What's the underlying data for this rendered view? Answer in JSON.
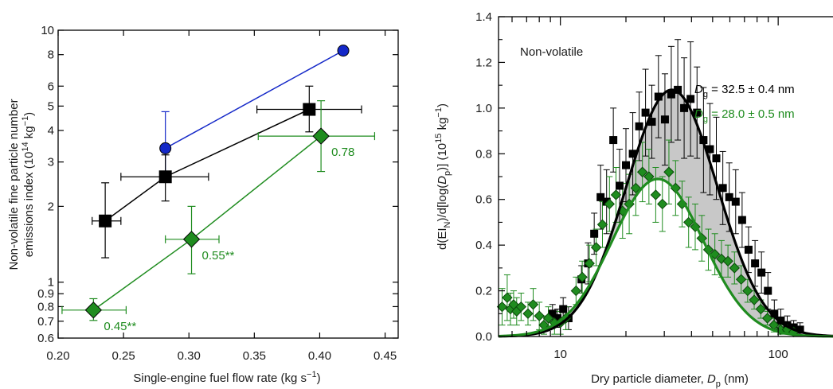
{
  "chart_data": [
    {
      "type": "scatter",
      "xlabel": "Single-engine fuel flow rate (kg s",
      "xlabel_sup": "−1",
      "xlabel_end": ")",
      "ylabel_line1": "Non-volatile fine particle number",
      "ylabel_line2_a": "emissions index (10",
      "ylabel_line2_sup1": "14",
      "ylabel_line2_b": " kg",
      "ylabel_line2_sup2": "−1",
      "ylabel_line2_c": ")",
      "xlim": [
        0.2,
        0.46
      ],
      "ylim": [
        0.6,
        10
      ],
      "yscale": "log",
      "x_ticks": [
        0.2,
        0.25,
        0.3,
        0.35,
        0.4,
        0.45
      ],
      "x_tick_labels": [
        "0.20",
        "0.25",
        "0.30",
        "0.35",
        "0.40",
        "0.45"
      ],
      "y_ticks": [
        0.6,
        0.7,
        0.8,
        0.9,
        1,
        2,
        3,
        4,
        5,
        6,
        8,
        10
      ],
      "y_tick_labels": [
        "0.6",
        "0.7",
        "0.8",
        "0.9",
        "1",
        "2",
        "3",
        "4",
        "5",
        "6",
        "8",
        "10"
      ],
      "series": [
        {
          "color": "#1428c8",
          "marker": "circle",
          "points": [
            {
              "x": 0.282,
              "y": 3.4,
              "ylo": 2.55,
              "yhi": 4.75
            },
            {
              "x": 0.418,
              "y": 8.3
            }
          ]
        },
        {
          "color": "#000000",
          "marker": "square",
          "points": [
            {
              "x": 0.236,
              "y": 1.75,
              "xlo": 0.226,
              "xhi": 0.248,
              "ylo": 1.25,
              "yhi": 2.48
            },
            {
              "x": 0.282,
              "y": 2.62,
              "xlo": 0.248,
              "xhi": 0.315,
              "ylo": 2.1,
              "yhi": 3.2
            },
            {
              "x": 0.392,
              "y": 4.85,
              "xlo": 0.352,
              "xhi": 0.432,
              "ylo": 3.95,
              "yhi": 6.0
            }
          ]
        },
        {
          "color": "#1f8c1f",
          "marker": "diamond",
          "points": [
            {
              "x": 0.227,
              "y": 0.775,
              "xlo": 0.203,
              "xhi": 0.252,
              "ylo": 0.705,
              "yhi": 0.86,
              "label": "0.45**"
            },
            {
              "x": 0.302,
              "y": 1.48,
              "xlo": 0.282,
              "xhi": 0.323,
              "ylo": 1.08,
              "yhi": 2.0,
              "label": "0.55**"
            },
            {
              "x": 0.401,
              "y": 3.8,
              "xlo": 0.353,
              "xhi": 0.442,
              "ylo": 2.75,
              "yhi": 5.25,
              "label": "0.78"
            }
          ]
        }
      ],
      "grid": false
    },
    {
      "type": "scatter",
      "annotation": "Non-volatile",
      "xlabel": "Dry particle diameter, ",
      "xlabel_var": "D",
      "xlabel_var_sub": "p",
      "xlabel_end": " (nm)",
      "ylabel": "d(EI",
      "ylabel_sub1": "N",
      "ylabel_mid": ")/d[log(",
      "ylabel_var": "D",
      "ylabel_sub2": "p",
      "ylabel_end": ")] (10",
      "ylabel_sup": "15",
      "ylabel_tail": " kg",
      "ylabel_sup2": "−1",
      "ylabel_close": ")",
      "xscale": "log",
      "xlim": [
        5.2,
        250
      ],
      "ylim": [
        0,
        1.4
      ],
      "x_tick_labels": [
        "10",
        "100"
      ],
      "y_ticks": [
        0,
        0.2,
        0.4,
        0.6,
        0.8,
        1.0,
        1.2,
        1.4
      ],
      "y_tick_labels": [
        "0.0",
        "0.2",
        "0.4",
        "0.6",
        "0.8",
        "1.0",
        "1.2",
        "1.4"
      ],
      "fits": [
        {
          "color": "#000000",
          "amplitude": 1.08,
          "dg": 32.5,
          "sigma": 1.62,
          "label_var": "D",
          "label_sub": "g",
          "label_text": " = 32.5 ± 0.4 nm"
        },
        {
          "color": "#1f8c1f",
          "amplitude": 0.69,
          "dg": 28.0,
          "sigma": 1.62,
          "label_var": "D",
          "label_sub": "g",
          "label_text": " = 28.0 ± 0.5 nm"
        }
      ],
      "series": [
        {
          "color": "#000000",
          "marker": "square",
          "points": [
            {
              "x": 9.2,
              "y": 0.1,
              "err": 0.04
            },
            {
              "x": 9.7,
              "y": 0.08,
              "err": 0.04
            },
            {
              "x": 10.3,
              "y": 0.12,
              "err": 0.05
            },
            {
              "x": 10.9,
              "y": 0.08,
              "err": 0.05
            },
            {
              "x": 12.5,
              "y": 0.25,
              "err": 0.06
            },
            {
              "x": 13.4,
              "y": 0.32,
              "err": 0.09
            },
            {
              "x": 14.3,
              "y": 0.45,
              "err": 0.09
            },
            {
              "x": 15.3,
              "y": 0.61,
              "err": 0.14
            },
            {
              "x": 16.3,
              "y": 0.59,
              "err": 0.14
            },
            {
              "x": 17.5,
              "y": 0.86,
              "err": 0.14
            },
            {
              "x": 18.7,
              "y": 0.66,
              "err": 0.16
            },
            {
              "x": 20.0,
              "y": 0.75,
              "err": 0.16
            },
            {
              "x": 21.5,
              "y": 0.8,
              "err": 0.18
            },
            {
              "x": 23.0,
              "y": 0.92,
              "err": 0.15
            },
            {
              "x": 24.6,
              "y": 0.98,
              "err": 0.19
            },
            {
              "x": 26.3,
              "y": 0.94,
              "err": 0.16
            },
            {
              "x": 28.2,
              "y": 1.05,
              "err": 0.18
            },
            {
              "x": 30.2,
              "y": 0.95,
              "err": 0.2
            },
            {
              "x": 32.3,
              "y": 1.06,
              "err": 0.21
            },
            {
              "x": 34.6,
              "y": 1.08,
              "err": 0.22
            },
            {
              "x": 37.0,
              "y": 1.0,
              "err": 0.22
            },
            {
              "x": 39.6,
              "y": 1.04,
              "err": 0.25
            },
            {
              "x": 42.4,
              "y": 0.98,
              "err": 0.2
            },
            {
              "x": 45.4,
              "y": 0.86,
              "err": 0.23
            },
            {
              "x": 48.6,
              "y": 0.82,
              "err": 0.2
            },
            {
              "x": 52.0,
              "y": 0.78,
              "err": 0.18
            },
            {
              "x": 55.7,
              "y": 0.65,
              "err": 0.16
            },
            {
              "x": 59.6,
              "y": 0.61,
              "err": 0.15
            },
            {
              "x": 63.8,
              "y": 0.59,
              "err": 0.14
            },
            {
              "x": 68.3,
              "y": 0.51,
              "err": 0.12
            },
            {
              "x": 73.1,
              "y": 0.38,
              "err": 0.1
            },
            {
              "x": 78.3,
              "y": 0.32,
              "err": 0.1
            },
            {
              "x": 83.8,
              "y": 0.28,
              "err": 0.09
            },
            {
              "x": 89.7,
              "y": 0.2,
              "err": 0.08
            },
            {
              "x": 96.0,
              "y": 0.1,
              "err": 0.06
            },
            {
              "x": 102.8,
              "y": 0.07,
              "err": 0.05
            },
            {
              "x": 110.0,
              "y": 0.05,
              "err": 0.04
            },
            {
              "x": 117.8,
              "y": 0.04,
              "err": 0.03
            },
            {
              "x": 126.0,
              "y": 0.03,
              "err": 0.03
            }
          ]
        },
        {
          "color": "#1f8c1f",
          "marker": "diamond",
          "points": [
            {
              "x": 5.4,
              "y": 0.13,
              "err": 0.08
            },
            {
              "x": 5.7,
              "y": 0.17,
              "err": 0.1
            },
            {
              "x": 5.9,
              "y": 0.12,
              "err": 0.07
            },
            {
              "x": 6.1,
              "y": 0.14,
              "err": 0.06
            },
            {
              "x": 6.3,
              "y": 0.11,
              "err": 0.06
            },
            {
              "x": 6.6,
              "y": 0.13,
              "err": 0.06
            },
            {
              "x": 7.1,
              "y": 0.1,
              "err": 0.05
            },
            {
              "x": 7.5,
              "y": 0.14,
              "err": 0.07
            },
            {
              "x": 8.0,
              "y": 0.09,
              "err": 0.06
            },
            {
              "x": 8.4,
              "y": 0.05,
              "err": 0.04
            },
            {
              "x": 8.8,
              "y": 0.08,
              "err": 0.05
            },
            {
              "x": 9.4,
              "y": 0.06,
              "err": 0.05
            },
            {
              "x": 10.0,
              "y": 0.06,
              "err": 0.05
            },
            {
              "x": 10.6,
              "y": 0.08,
              "err": 0.05
            },
            {
              "x": 11.8,
              "y": 0.2,
              "err": 0.06
            },
            {
              "x": 12.6,
              "y": 0.26,
              "err": 0.07
            },
            {
              "x": 13.6,
              "y": 0.32,
              "err": 0.08
            },
            {
              "x": 14.6,
              "y": 0.39,
              "err": 0.08
            },
            {
              "x": 15.6,
              "y": 0.49,
              "err": 0.1
            },
            {
              "x": 16.8,
              "y": 0.58,
              "err": 0.12
            },
            {
              "x": 18.0,
              "y": 0.62,
              "err": 0.12
            },
            {
              "x": 19.3,
              "y": 0.55,
              "err": 0.12
            },
            {
              "x": 20.7,
              "y": 0.58,
              "err": 0.13
            },
            {
              "x": 22.2,
              "y": 0.65,
              "err": 0.12
            },
            {
              "x": 23.8,
              "y": 0.72,
              "err": 0.13
            },
            {
              "x": 25.5,
              "y": 0.7,
              "err": 0.12
            },
            {
              "x": 27.4,
              "y": 0.62,
              "err": 0.12
            },
            {
              "x": 29.4,
              "y": 0.58,
              "err": 0.12
            },
            {
              "x": 31.5,
              "y": 0.72,
              "err": 0.14
            },
            {
              "x": 33.8,
              "y": 0.65,
              "err": 0.12
            },
            {
              "x": 36.2,
              "y": 0.58,
              "err": 0.1
            },
            {
              "x": 38.8,
              "y": 0.5,
              "err": 0.11
            },
            {
              "x": 41.6,
              "y": 0.48,
              "err": 0.1
            },
            {
              "x": 44.6,
              "y": 0.43,
              "err": 0.1
            },
            {
              "x": 47.8,
              "y": 0.38,
              "err": 0.09
            },
            {
              "x": 51.2,
              "y": 0.36,
              "err": 0.09
            },
            {
              "x": 54.9,
              "y": 0.34,
              "err": 0.08
            },
            {
              "x": 58.8,
              "y": 0.33,
              "err": 0.07
            },
            {
              "x": 63.0,
              "y": 0.3,
              "err": 0.07
            },
            {
              "x": 67.6,
              "y": 0.25,
              "err": 0.06
            },
            {
              "x": 72.4,
              "y": 0.2,
              "err": 0.05
            },
            {
              "x": 77.6,
              "y": 0.16,
              "err": 0.04
            },
            {
              "x": 83.2,
              "y": 0.12,
              "err": 0.04
            },
            {
              "x": 89.2,
              "y": 0.08,
              "err": 0.03
            },
            {
              "x": 95.6,
              "y": 0.05,
              "err": 0.03
            },
            {
              "x": 102.5,
              "y": 0.03,
              "err": 0.02
            },
            {
              "x": 109.9,
              "y": 0.03,
              "err": 0.02
            },
            {
              "x": 117.8,
              "y": 0.02,
              "err": 0.02
            }
          ]
        }
      ]
    }
  ]
}
